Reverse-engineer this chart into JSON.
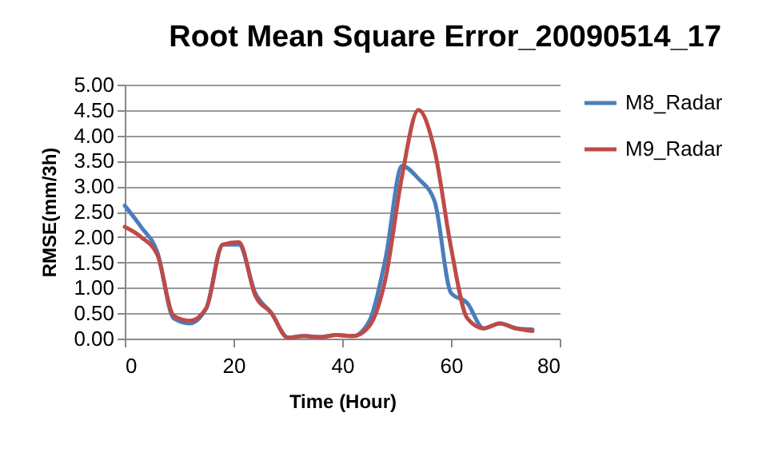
{
  "chart_data": {
    "type": "line",
    "title": "Root Mean Square Error_20090514_17",
    "xlabel": "Time (Hour)",
    "ylabel": "RMSE(mm/3h)",
    "x": [
      0,
      3,
      6,
      9,
      12,
      15,
      18,
      21,
      24,
      27,
      30,
      33,
      36,
      39,
      42,
      45,
      48,
      51,
      54,
      57,
      60,
      63,
      66,
      69,
      72,
      75
    ],
    "series": [
      {
        "name": "M8_Radar",
        "color": "#4a7ebb",
        "values": [
          2.62,
          2.2,
          1.7,
          0.4,
          0.3,
          0.6,
          1.85,
          1.85,
          0.9,
          0.5,
          0.02,
          0.05,
          0.03,
          0.07,
          0.05,
          0.35,
          1.6,
          3.4,
          3.15,
          2.7,
          0.9,
          0.7,
          0.2,
          0.3,
          0.2,
          0.18
        ]
      },
      {
        "name": "M9_Radar",
        "color": "#be4b48",
        "values": [
          2.2,
          2.0,
          1.65,
          0.45,
          0.35,
          0.6,
          1.85,
          1.9,
          0.85,
          0.5,
          0.02,
          0.05,
          0.03,
          0.07,
          0.05,
          0.25,
          1.2,
          3.2,
          4.5,
          3.7,
          1.8,
          0.4,
          0.2,
          0.3,
          0.2,
          0.15
        ]
      }
    ],
    "xlim": [
      0,
      80
    ],
    "xticks": [
      0,
      20,
      40,
      60,
      80
    ],
    "ylim": [
      0,
      5
    ],
    "yticks": [
      {
        "value": 0,
        "label": "0.00"
      },
      {
        "value": 0.5,
        "label": "0.50"
      },
      {
        "value": 1,
        "label": "1.00"
      },
      {
        "value": 1.5,
        "label": "1.50"
      },
      {
        "value": 2,
        "label": "2.00"
      },
      {
        "value": 2.5,
        "label": "2.50"
      },
      {
        "value": 3,
        "label": "3.00"
      },
      {
        "value": 3.5,
        "label": "3.50"
      },
      {
        "value": 4,
        "label": "4.00"
      },
      {
        "value": 4.5,
        "label": "4.50"
      },
      {
        "value": 5,
        "label": "5.00"
      }
    ],
    "grid": "y",
    "legend": "right",
    "marker": "none",
    "line_style": "solid"
  }
}
